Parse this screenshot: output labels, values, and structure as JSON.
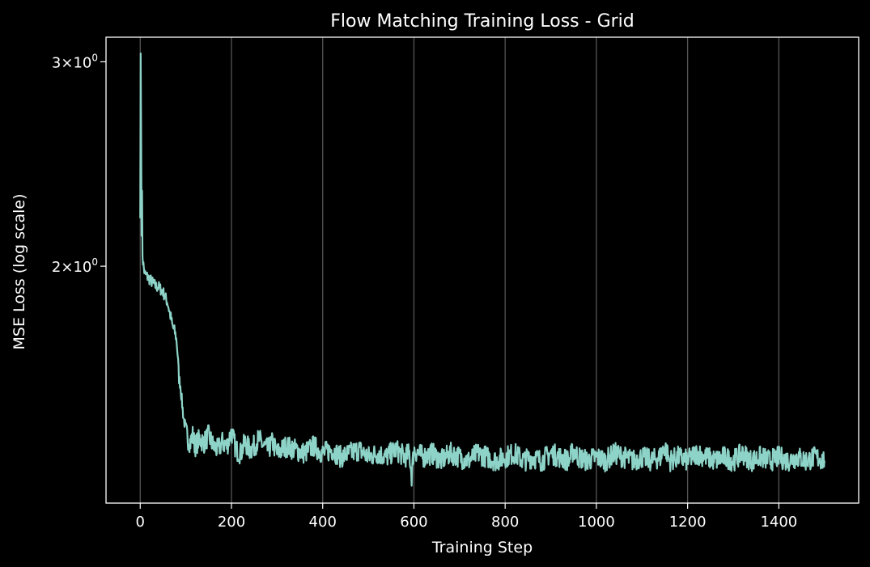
{
  "chart_data": {
    "type": "line",
    "title": "Flow Matching Training Loss - Grid",
    "xlabel": "Training Step",
    "ylabel": "MSE Loss (log scale)",
    "xlim": [
      -75,
      1575
    ],
    "ylim": [
      1.25,
      3.15
    ],
    "yscale": "log",
    "xticks": [
      0,
      200,
      400,
      600,
      800,
      1000,
      1200,
      1400
    ],
    "xtick_labels": [
      "0",
      "200",
      "400",
      "600",
      "800",
      "1000",
      "1200",
      "1400"
    ],
    "yticks": [
      {
        "value": 3,
        "mantissa": "3",
        "base": "10",
        "exp": "0"
      },
      {
        "value": 2,
        "mantissa": "2",
        "base": "10",
        "exp": "0"
      }
    ],
    "grid": "x",
    "background_color": "#000000",
    "line_color": "#8dd3c7",
    "grid_color": "#555555",
    "series": [
      {
        "x": [
          0,
          1,
          2,
          3,
          4,
          5,
          6,
          8,
          10,
          15,
          20,
          25,
          30,
          35,
          40,
          45,
          50,
          55,
          60,
          65,
          68,
          70,
          72,
          75,
          78,
          80,
          82,
          85,
          88,
          90,
          92,
          95,
          98,
          100,
          105,
          110,
          115,
          120,
          130,
          140,
          150,
          160,
          170,
          180,
          190,
          200,
          210,
          220,
          230,
          240,
          250,
          260,
          270,
          280,
          290,
          300,
          320,
          340,
          360,
          380,
          400,
          420,
          440,
          460,
          480,
          500,
          520,
          540,
          560,
          580,
          590,
          595,
          600,
          620,
          640,
          660,
          680,
          700,
          720,
          740,
          760,
          780,
          800,
          820,
          840,
          860,
          880,
          900,
          920,
          940,
          950,
          960,
          980,
          1000,
          1020,
          1040,
          1060,
          1080,
          1100,
          1120,
          1140,
          1150,
          1160,
          1180,
          1200,
          1220,
          1240,
          1260,
          1280,
          1300,
          1320,
          1340,
          1360,
          1380,
          1400,
          1420,
          1440,
          1460,
          1480,
          1500
        ],
        "y": [
          2.2,
          3.05,
          2.6,
          2.15,
          2.3,
          2.05,
          2.02,
          1.99,
          1.97,
          1.96,
          1.95,
          1.94,
          1.93,
          1.92,
          1.92,
          1.91,
          1.9,
          1.88,
          1.86,
          1.82,
          1.8,
          1.78,
          1.77,
          1.76,
          1.74,
          1.72,
          1.68,
          1.6,
          1.58,
          1.55,
          1.52,
          1.48,
          1.46,
          1.44,
          1.42,
          1.41,
          1.43,
          1.4,
          1.42,
          1.41,
          1.43,
          1.4,
          1.39,
          1.41,
          1.4,
          1.44,
          1.39,
          1.38,
          1.41,
          1.39,
          1.4,
          1.42,
          1.4,
          1.39,
          1.41,
          1.38,
          1.4,
          1.39,
          1.38,
          1.4,
          1.38,
          1.39,
          1.37,
          1.38,
          1.39,
          1.37,
          1.38,
          1.37,
          1.39,
          1.37,
          1.38,
          1.32,
          1.39,
          1.37,
          1.38,
          1.36,
          1.38,
          1.37,
          1.36,
          1.38,
          1.37,
          1.36,
          1.37,
          1.38,
          1.36,
          1.37,
          1.36,
          1.38,
          1.37,
          1.36,
          1.39,
          1.37,
          1.36,
          1.37,
          1.36,
          1.38,
          1.37,
          1.36,
          1.37,
          1.36,
          1.37,
          1.4,
          1.36,
          1.37,
          1.36,
          1.38,
          1.37,
          1.36,
          1.37,
          1.36,
          1.38,
          1.36,
          1.37,
          1.36,
          1.37,
          1.36,
          1.37,
          1.36,
          1.37,
          1.36
        ]
      }
    ]
  }
}
